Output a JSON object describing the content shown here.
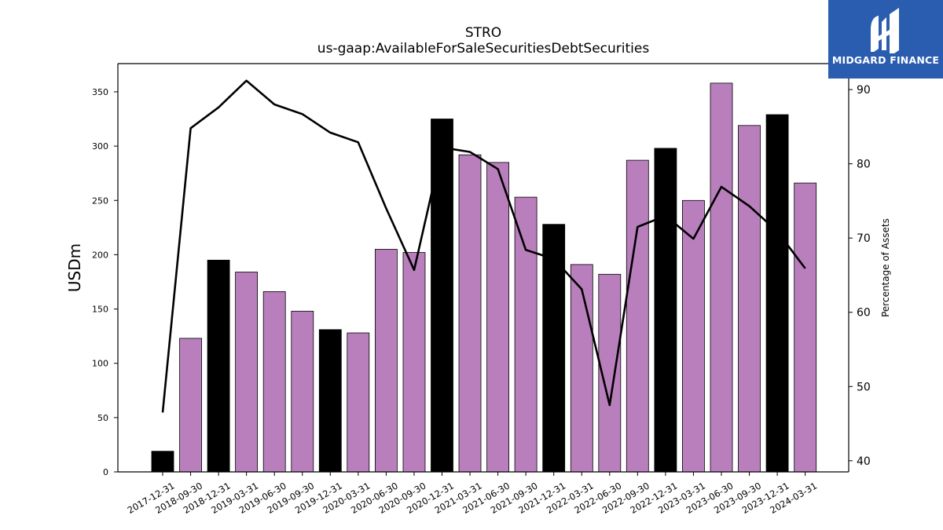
{
  "chart_data": {
    "type": "bar",
    "title": "STRO",
    "subtitle": "us-gaap:AvailableForSaleSecuritiesDebtSecurities",
    "ylabel": "USDm",
    "y2label": "Percentage of Assets",
    "ylim": [
      0,
      376
    ],
    "y2lim": [
      38.5,
      93.5
    ],
    "yticks": [
      0,
      50,
      100,
      150,
      200,
      250,
      300,
      350
    ],
    "y2ticks": [
      40,
      50,
      60,
      70,
      80,
      90
    ],
    "categories": [
      "2017-12-31",
      "2018-09-30",
      "2018-12-31",
      "2019-03-31",
      "2019-06-30",
      "2019-09-30",
      "2019-12-31",
      "2020-03-31",
      "2020-06-30",
      "2020-09-30",
      "2020-12-31",
      "2021-03-31",
      "2021-06-30",
      "2021-09-30",
      "2021-12-31",
      "2022-03-31",
      "2022-06-30",
      "2022-09-30",
      "2022-12-31",
      "2023-03-31",
      "2023-06-30",
      "2023-09-30",
      "2023-12-31",
      "2024-03-31"
    ],
    "series": [
      {
        "type": "bar",
        "values": [
          19,
          123,
          195,
          184,
          166,
          148,
          131,
          128,
          205,
          202,
          325,
          292,
          285,
          253,
          228,
          191,
          182,
          287,
          298,
          250,
          358,
          319,
          329,
          266
        ],
        "colors": [
          "#000000",
          "#b97fbd",
          "#000000",
          "#b97fbd",
          "#b97fbd",
          "#b97fbd",
          "#000000",
          "#b97fbd",
          "#b97fbd",
          "#b97fbd",
          "#000000",
          "#b97fbd",
          "#b97fbd",
          "#b97fbd",
          "#000000",
          "#b97fbd",
          "#b97fbd",
          "#b97fbd",
          "#000000",
          "#b97fbd",
          "#b97fbd",
          "#b97fbd",
          "#000000",
          "#b97fbd"
        ]
      },
      {
        "type": "line",
        "axis": "right",
        "values": [
          46.5,
          84.8,
          87.6,
          91.2,
          88.0,
          86.7,
          84.2,
          82.9,
          74.0,
          65.7,
          82.2,
          81.6,
          79.3,
          68.4,
          67.2,
          63.1,
          47.5,
          71.5,
          73.0,
          69.9,
          76.9,
          74.3,
          70.9,
          65.9
        ],
        "color": "#000000"
      }
    ],
    "grid": false,
    "legend": "none"
  },
  "logo": {
    "text": "MIDGARD FINANCE",
    "color": "#2a5db0"
  }
}
